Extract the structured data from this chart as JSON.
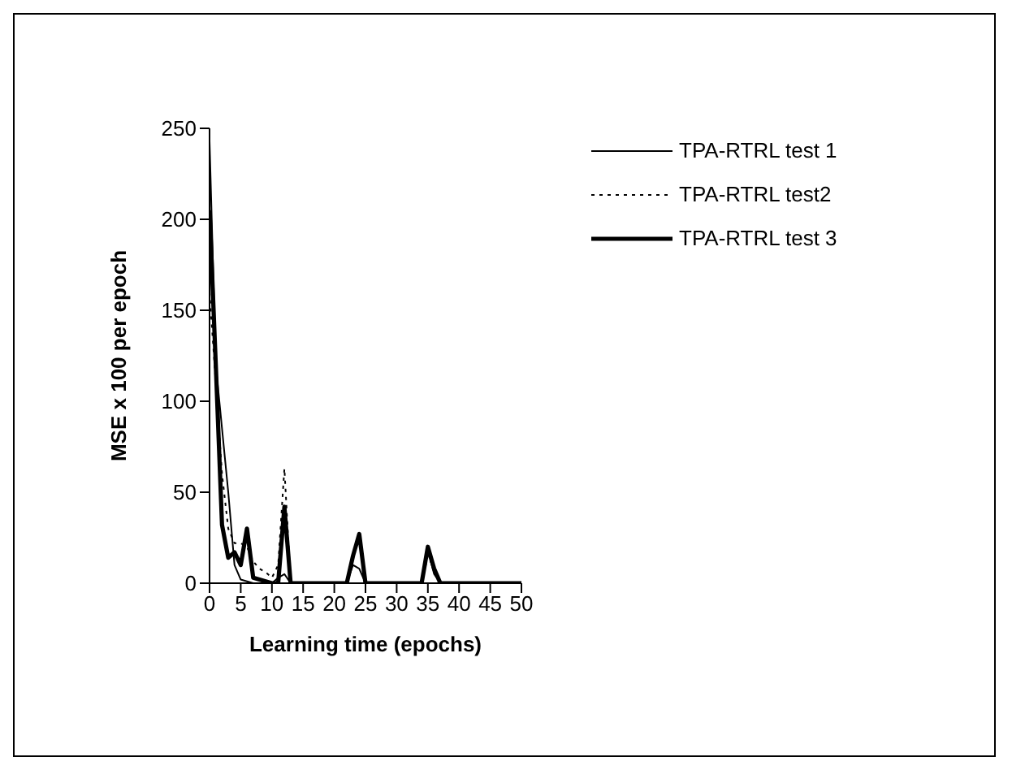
{
  "chart_data": {
    "type": "line",
    "xlabel": "Learning time (epochs)",
    "ylabel": "MSE x 100 per epoch",
    "x": [
      0,
      1,
      2,
      3,
      4,
      5,
      6,
      7,
      8,
      9,
      10,
      11,
      12,
      13,
      14,
      15,
      16,
      17,
      18,
      19,
      20,
      21,
      22,
      23,
      24,
      25,
      26,
      27,
      28,
      29,
      30,
      31,
      32,
      33,
      34,
      35,
      36,
      37,
      38,
      39,
      40,
      41,
      42,
      43,
      44,
      45,
      46,
      47,
      48,
      49,
      50
    ],
    "series": [
      {
        "name": "TPA-RTRL test 1",
        "color": "#000000",
        "line_style": "solid",
        "values": [
          243,
          120,
          85,
          50,
          10,
          2,
          1,
          0,
          0,
          0,
          0,
          3,
          5,
          0,
          0,
          0,
          0,
          0,
          0,
          0,
          0,
          0,
          0,
          10,
          8,
          0,
          0,
          0,
          0,
          0,
          0,
          0,
          0,
          0,
          0,
          18,
          5,
          0,
          0,
          0,
          0,
          0,
          0,
          0,
          0,
          0,
          0,
          0,
          0,
          0,
          0
        ]
      },
      {
        "name": "TPA-RTRL test2",
        "color": "#000000",
        "line_style": "dotted",
        "values": [
          160,
          110,
          60,
          30,
          22,
          22,
          20,
          12,
          8,
          6,
          3,
          10,
          63,
          0,
          0,
          0,
          0,
          0,
          0,
          0,
          0,
          0,
          0,
          15,
          25,
          0,
          0,
          0,
          0,
          0,
          0,
          0,
          0,
          0,
          0,
          15,
          8,
          0,
          0,
          0,
          0,
          0,
          0,
          0,
          0,
          0,
          0,
          0,
          0,
          0,
          0
        ]
      },
      {
        "name": "TPA-RTRL test 3",
        "color": "#000000",
        "line_style": "solid",
        "values": [
          205,
          120,
          32,
          14,
          17,
          10,
          30,
          3,
          2,
          1,
          0,
          0,
          42,
          0,
          0,
          0,
          0,
          0,
          0,
          0,
          0,
          0,
          0,
          15,
          27,
          0,
          0,
          0,
          0,
          0,
          0,
          0,
          0,
          0,
          0,
          20,
          8,
          0,
          0,
          0,
          0,
          0,
          0,
          0,
          0,
          0,
          0,
          0,
          0,
          0,
          0
        ]
      }
    ],
    "xlim": [
      0,
      50
    ],
    "xticks": [
      0,
      5,
      10,
      15,
      20,
      25,
      30,
      35,
      40,
      45,
      50
    ],
    "ylim": [
      0,
      250
    ],
    "yticks": [
      0,
      50,
      100,
      150,
      200,
      250
    ],
    "grid": false,
    "legend": "top right",
    "marker": "none"
  }
}
